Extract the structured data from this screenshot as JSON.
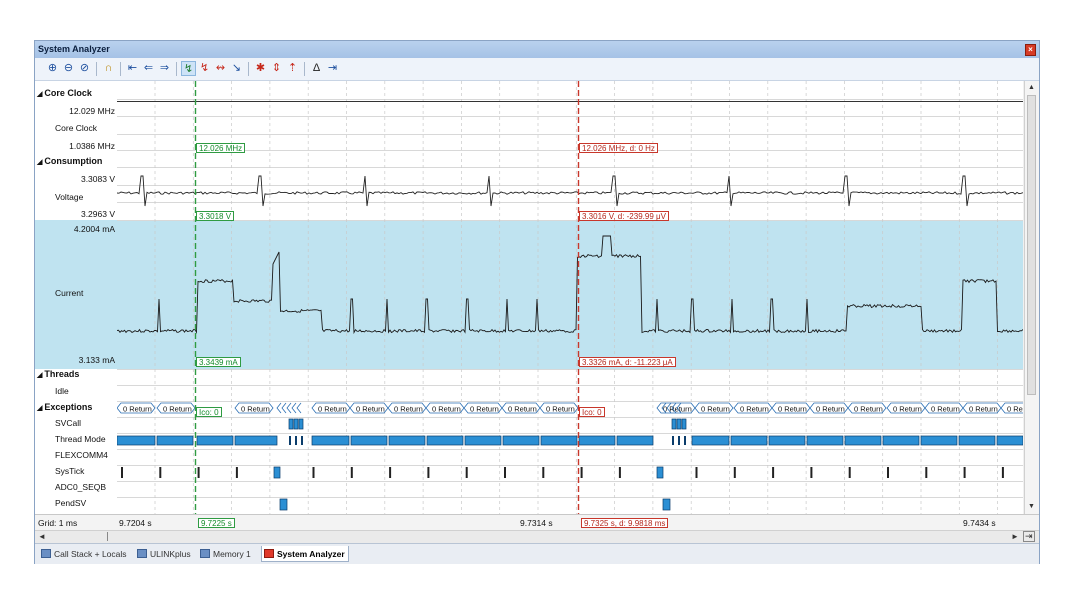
{
  "window": {
    "title": "System Analyzer",
    "close_icon": "close-icon"
  },
  "toolbar": {
    "buttons": [
      "zoom-in-icon",
      "zoom-out-icon",
      "zoom-all-icon",
      "lock-icon",
      "jump-start-icon",
      "prev-icon",
      "next-icon",
      "cursor-green-icon",
      "cursor-red-icon",
      "cursor-both-icon",
      "goto-code-icon",
      "split-icon",
      "stack-icon",
      "rise-icon",
      "delta-icon",
      "jump-end-icon"
    ]
  },
  "groups": {
    "core_clock": "Core Clock",
    "consumption": "Consumption",
    "threads": "Threads",
    "exceptions": "Exceptions"
  },
  "signals": {
    "core_clock_max": "12.029 MHz",
    "core_clock_name": "Core Clock",
    "core_clock_min": "1.0386 MHz",
    "voltage_max": "3.3083 V",
    "voltage_name": "Voltage",
    "voltage_min": "3.2963 V",
    "current_max": "4.2004 mA",
    "current_name": "Current",
    "current_min": "3.133 mA",
    "idle": "Idle",
    "svcall": "SVCall",
    "thread_mode": "Thread Mode",
    "flexcomm4": "FLEXCOMM4",
    "systick": "SysTick",
    "adc0": "ADC0_SEQB",
    "pendsv": "PendSV"
  },
  "cursors": {
    "green": {
      "clock": "12.026 MHz",
      "voltage": "3.3018 V",
      "current": "3.3439 mA",
      "exc": "Ico: 0",
      "time": "9.7225 s"
    },
    "red": {
      "clock": "12.026 MHz, d: 0 Hz",
      "voltage": "3.3016 V, d: -239.99 μV",
      "current": "3.3326 mA, d: -11.223 μA",
      "exc": "Ico: 0",
      "time": "9.7325 s, d: 9.9818 ms"
    }
  },
  "exceptions_label": "0 Return",
  "gridbar": {
    "grid": "Grid: 1 ms",
    "t_left": "9.7204 s",
    "t_mid": "9.7314 s",
    "t_right": "9.7434 s"
  },
  "tabs": [
    "Call Stack + Locals",
    "ULINKplus",
    "Memory 1",
    "System Analyzer"
  ],
  "colors": {
    "current_bg": "#bfe3f0",
    "green_cursor": "#2f9b42",
    "red_cursor": "#c8372b",
    "bar_fill": "#2b8fd4"
  }
}
